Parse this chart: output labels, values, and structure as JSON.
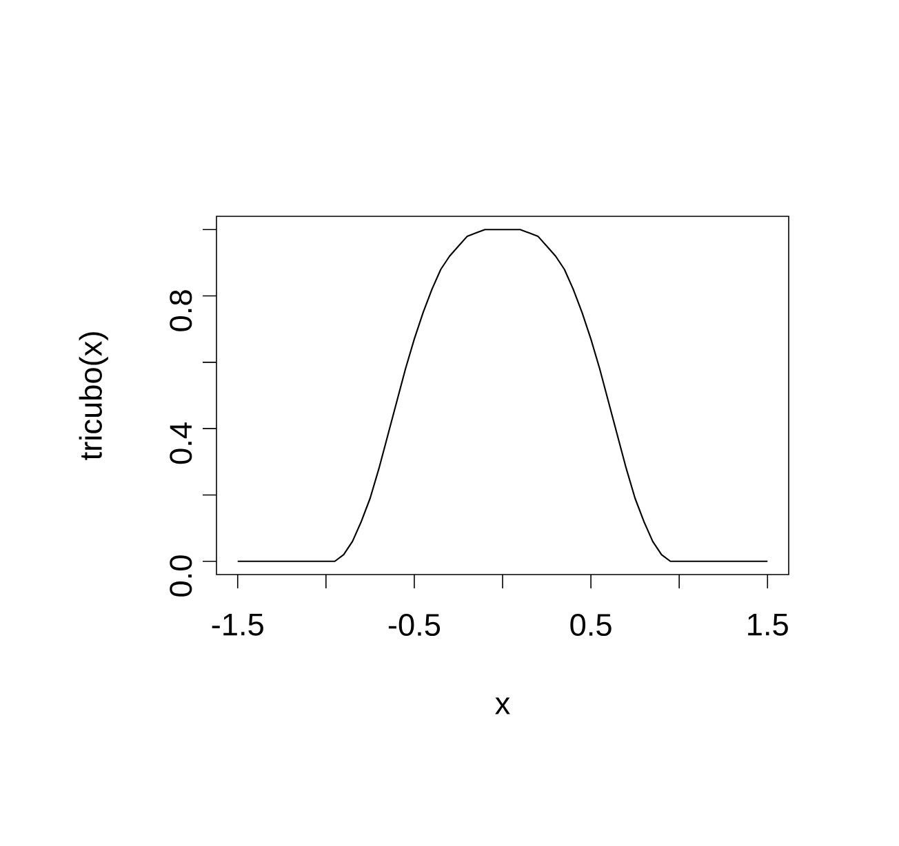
{
  "chart_data": {
    "type": "line",
    "xlabel": "x",
    "ylabel": "tricubo(x)",
    "color": "#000000",
    "x": [
      -1.5,
      -1.4,
      -1.3,
      -1.2,
      -1.1,
      -1.0,
      -0.95,
      -0.9,
      -0.85,
      -0.8,
      -0.75,
      -0.7,
      -0.65,
      -0.6,
      -0.55,
      -0.5,
      -0.45,
      -0.4,
      -0.35,
      -0.3,
      -0.25,
      -0.2,
      -0.15,
      -0.1,
      -0.05,
      0,
      0.05,
      0.1,
      0.15,
      0.2,
      0.25,
      0.3,
      0.35,
      0.4,
      0.45,
      0.5,
      0.55,
      0.6,
      0.65,
      0.7,
      0.75,
      0.8,
      0.85,
      0.9,
      0.95,
      1.0,
      1.1,
      1.2,
      1.3,
      1.4,
      1.5
    ],
    "values": [
      0,
      0,
      0,
      0,
      0,
      0,
      0,
      0.02,
      0.06,
      0.12,
      0.19,
      0.28,
      0.38,
      0.48,
      0.58,
      0.67,
      0.75,
      0.82,
      0.88,
      0.92,
      0.95,
      0.98,
      0.99,
      1.0,
      1.0,
      1.0,
      1.0,
      1.0,
      0.99,
      0.98,
      0.95,
      0.92,
      0.88,
      0.82,
      0.75,
      0.67,
      0.58,
      0.48,
      0.38,
      0.28,
      0.19,
      0.12,
      0.06,
      0.02,
      0,
      0,
      0,
      0,
      0,
      0,
      0
    ],
    "xlim": [
      -1.62,
      1.62
    ],
    "ylim": [
      -0.04,
      1.04
    ],
    "xticks": [
      {
        "value": -1.5,
        "label": "-1.5"
      },
      {
        "value": -1,
        "label": null
      },
      {
        "value": -0.5,
        "label": "-0.5"
      },
      {
        "value": 0,
        "label": null
      },
      {
        "value": 0.5,
        "label": "0.5"
      },
      {
        "value": 1,
        "label": null
      },
      {
        "value": 1.5,
        "label": "1.5"
      }
    ],
    "yticks": [
      {
        "value": 0,
        "label": "0.0"
      },
      {
        "value": 0.2,
        "label": null
      },
      {
        "value": 0.4,
        "label": "0.4"
      },
      {
        "value": 0.6,
        "label": null
      },
      {
        "value": 0.8,
        "label": "0.8"
      },
      {
        "value": 1.0,
        "label": null
      }
    ],
    "marker": "none",
    "line_style": "solid",
    "grid": false
  }
}
